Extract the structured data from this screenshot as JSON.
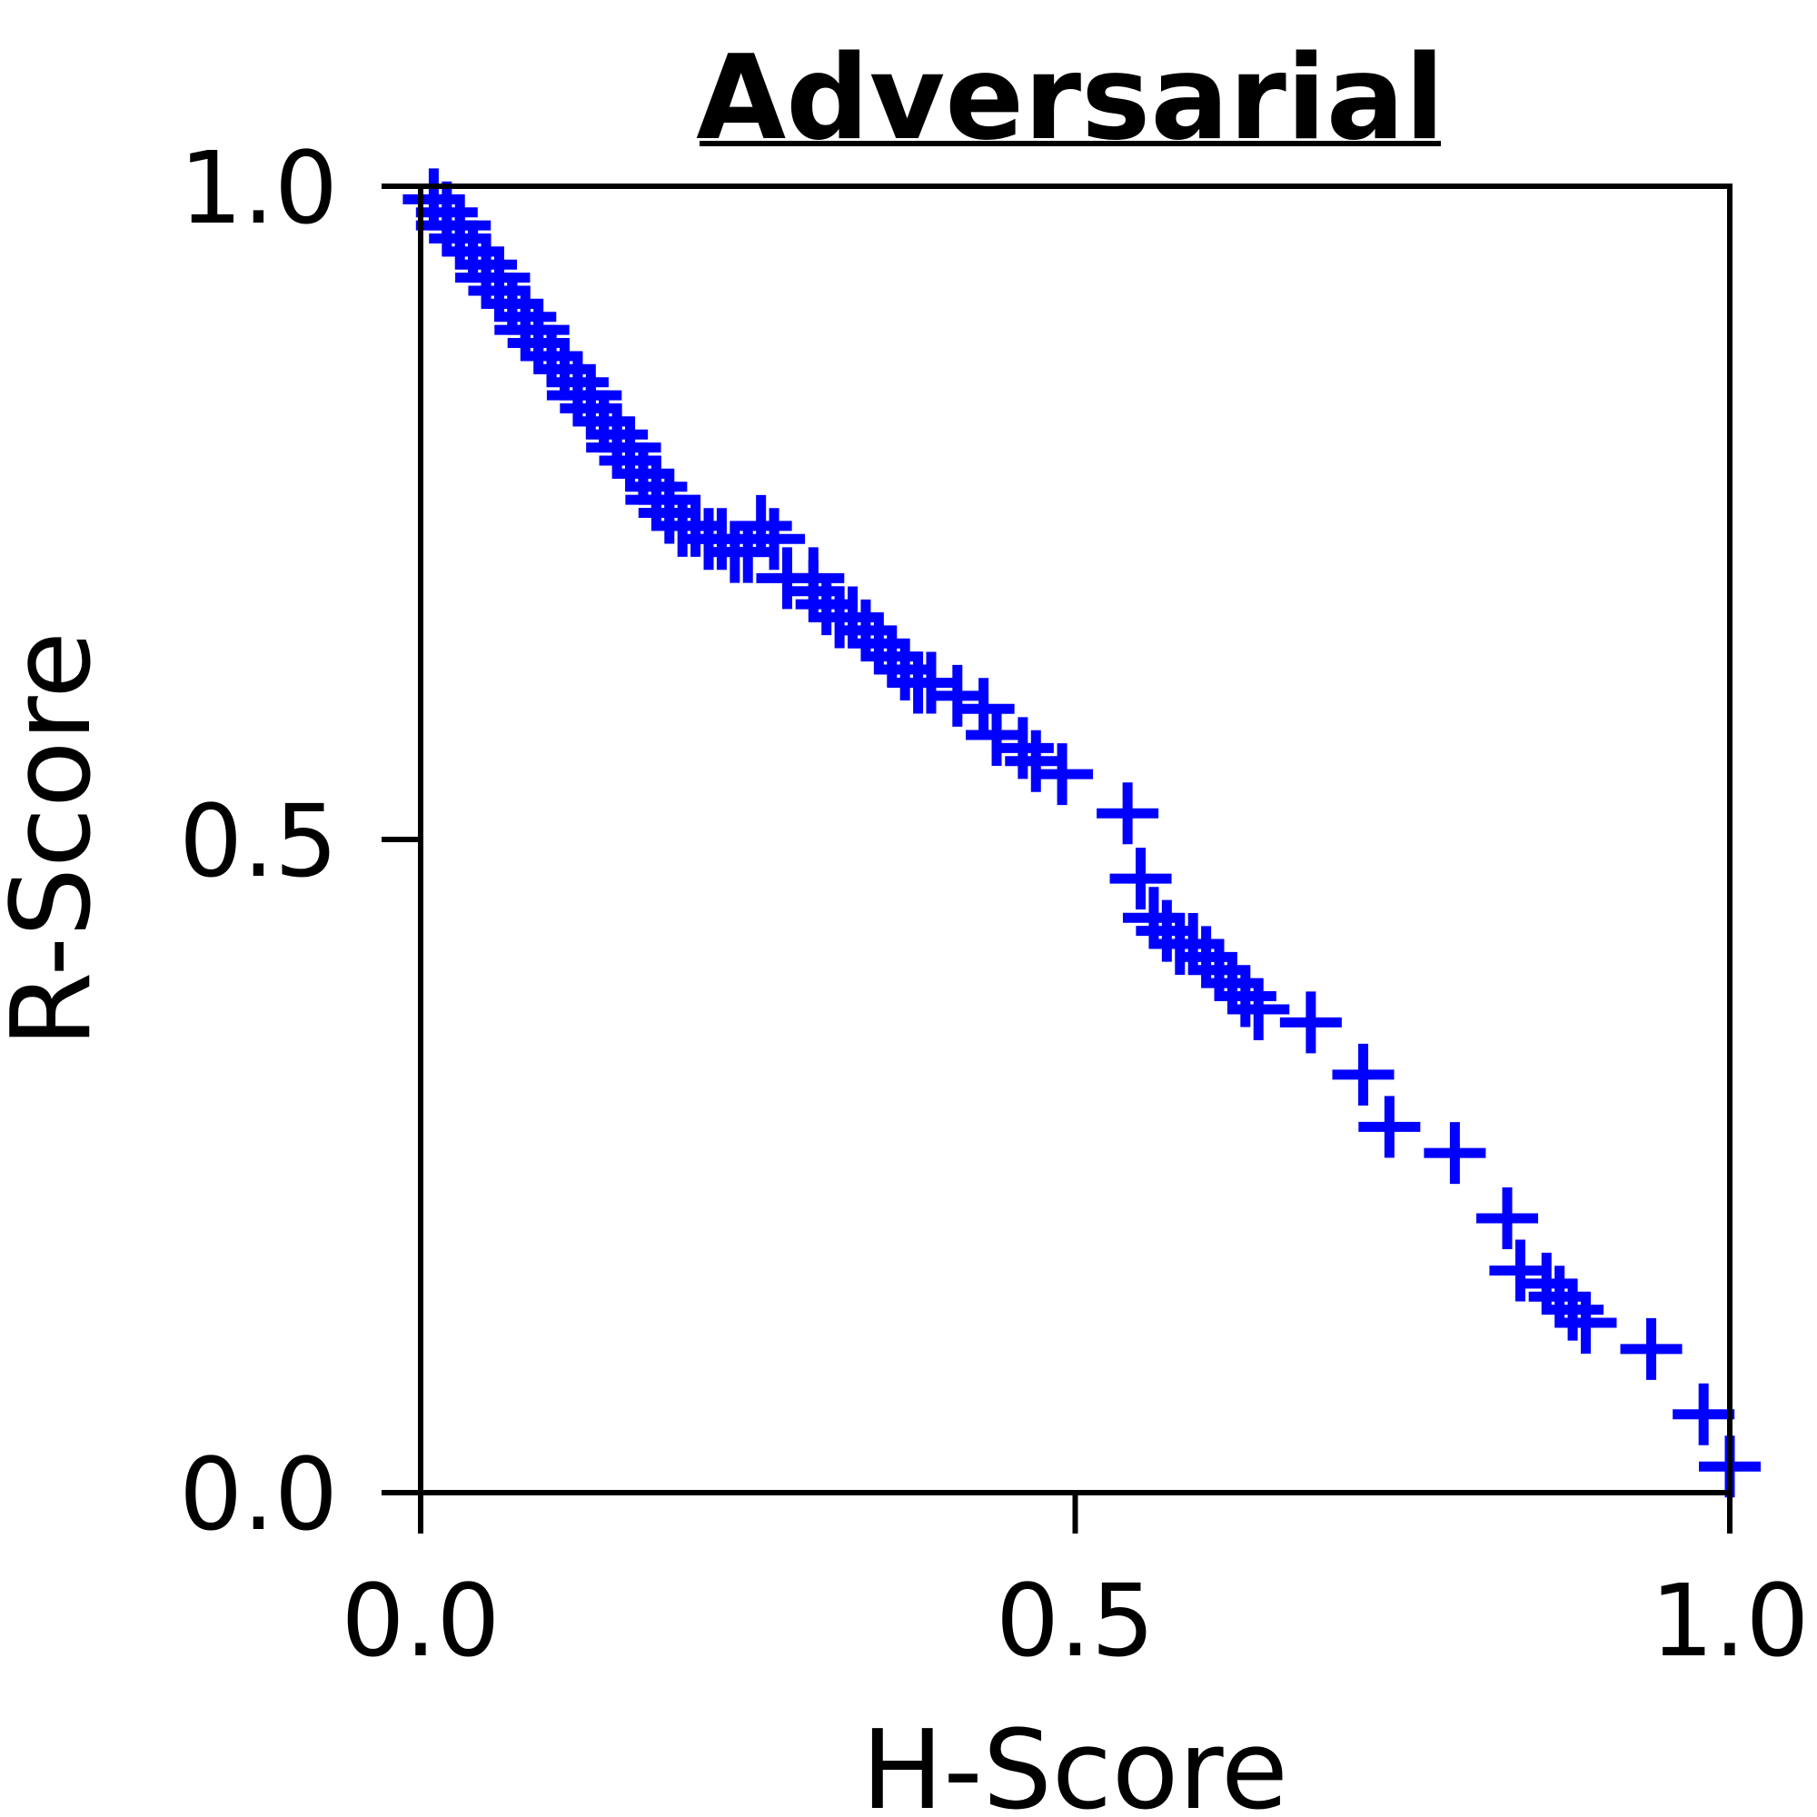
{
  "chart_data": {
    "type": "scatter",
    "title": "Adversarial",
    "xlabel": "H-Score",
    "ylabel": "R-Score",
    "xlim": [
      0.0,
      1.0
    ],
    "ylim": [
      0.0,
      1.0
    ],
    "xticks": [
      "0.0",
      "0.5",
      "1.0"
    ],
    "yticks": [
      "0.0",
      "0.5",
      "1.0"
    ],
    "grid": false,
    "marker": "plus",
    "color": "#0000ff",
    "series": [
      {
        "name": "Adversarial",
        "x": [
          0.01,
          0.02,
          0.02,
          0.03,
          0.03,
          0.04,
          0.04,
          0.05,
          0.05,
          0.06,
          0.06,
          0.07,
          0.07,
          0.08,
          0.08,
          0.09,
          0.09,
          0.1,
          0.1,
          0.11,
          0.11,
          0.12,
          0.12,
          0.13,
          0.13,
          0.14,
          0.14,
          0.15,
          0.15,
          0.16,
          0.16,
          0.17,
          0.17,
          0.18,
          0.18,
          0.19,
          0.19,
          0.2,
          0.21,
          0.22,
          0.23,
          0.24,
          0.25,
          0.26,
          0.27,
          0.28,
          0.3,
          0.31,
          0.3,
          0.32,
          0.33,
          0.34,
          0.35,
          0.36,
          0.37,
          0.38,
          0.39,
          0.41,
          0.43,
          0.44,
          0.46,
          0.47,
          0.49,
          0.54,
          0.55,
          0.56,
          0.57,
          0.58,
          0.59,
          0.6,
          0.61,
          0.62,
          0.63,
          0.64,
          0.68,
          0.72,
          0.74,
          0.79,
          0.83,
          0.84,
          0.86,
          0.87,
          0.88,
          0.89,
          0.94,
          0.98,
          1.0
        ],
        "y": [
          0.99,
          0.98,
          0.97,
          0.97,
          0.96,
          0.95,
          0.95,
          0.94,
          0.93,
          0.93,
          0.92,
          0.91,
          0.91,
          0.9,
          0.89,
          0.89,
          0.88,
          0.87,
          0.87,
          0.86,
          0.86,
          0.85,
          0.84,
          0.84,
          0.83,
          0.82,
          0.82,
          0.81,
          0.8,
          0.8,
          0.79,
          0.78,
          0.78,
          0.77,
          0.76,
          0.76,
          0.75,
          0.74,
          0.74,
          0.73,
          0.73,
          0.72,
          0.72,
          0.74,
          0.73,
          0.7,
          0.69,
          0.68,
          0.7,
          0.67,
          0.67,
          0.66,
          0.65,
          0.64,
          0.63,
          0.62,
          0.62,
          0.61,
          0.6,
          0.58,
          0.57,
          0.56,
          0.55,
          0.52,
          0.47,
          0.44,
          0.43,
          0.42,
          0.42,
          0.41,
          0.4,
          0.39,
          0.38,
          0.37,
          0.36,
          0.32,
          0.28,
          0.26,
          0.21,
          0.17,
          0.16,
          0.15,
          0.14,
          0.13,
          0.11,
          0.06,
          0.02
        ]
      }
    ]
  }
}
